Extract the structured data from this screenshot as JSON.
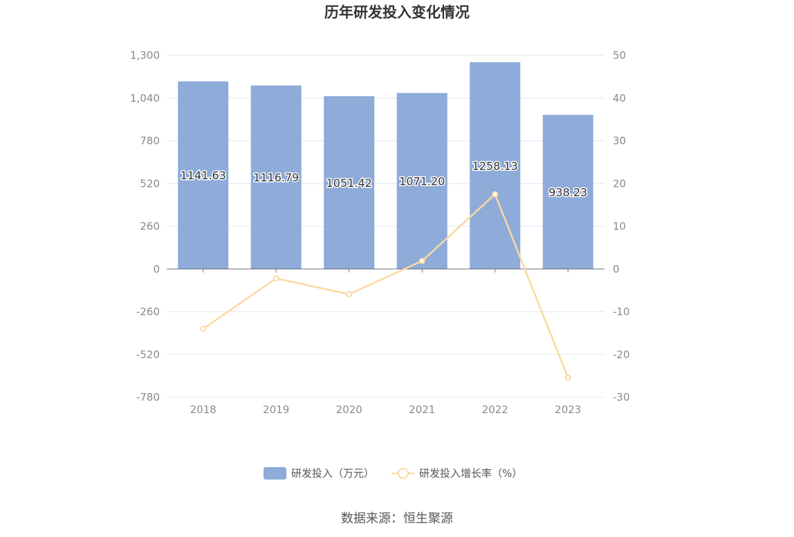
{
  "chart_data": {
    "type": "bar",
    "title": "历年研发投入变化情况",
    "categories": [
      "2018",
      "2019",
      "2020",
      "2021",
      "2022",
      "2023"
    ],
    "series": [
      {
        "name": "研发投入（万元）",
        "type": "bar",
        "axis": "left",
        "color": "#8eabd9",
        "values": [
          1141.63,
          1116.79,
          1051.42,
          1071.2,
          1258.13,
          938.23
        ],
        "labels": [
          "1141.63",
          "1116.79",
          "1051.42",
          "1071.20",
          "1258.13",
          "938.23"
        ]
      },
      {
        "name": "研发投入增长率（%）",
        "type": "line",
        "axis": "right",
        "color": "#fad9a0",
        "values": [
          -14.0,
          -2.2,
          -5.9,
          1.9,
          17.5,
          -25.4
        ]
      }
    ],
    "left_axis": {
      "ylim": [
        -780,
        1300
      ],
      "ticks": [
        1300,
        1040,
        780,
        520,
        260,
        0,
        -260,
        -520,
        -780
      ],
      "tick_labels": [
        "1,300",
        "1,040",
        "780",
        "520",
        "260",
        "0",
        "-260",
        "-520",
        "-780"
      ]
    },
    "right_axis": {
      "ylim": [
        -30,
        50
      ],
      "ticks": [
        50,
        40,
        30,
        20,
        10,
        0,
        -10,
        -20,
        -30
      ],
      "tick_labels": [
        "50",
        "40",
        "30",
        "20",
        "10",
        "0",
        "-10",
        "-20",
        "-30"
      ]
    },
    "grid": true,
    "legend_position": "bottom-center"
  },
  "source": "数据来源：恒生聚源"
}
